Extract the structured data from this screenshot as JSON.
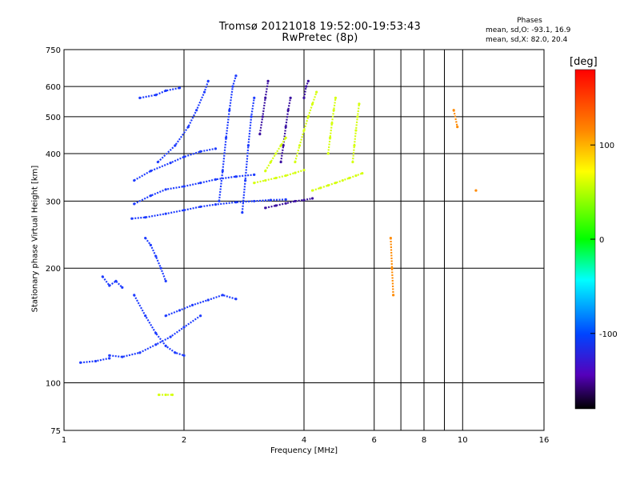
{
  "header": {
    "title_line1": "Tromsø 20121018 19:52:00-19:53:43",
    "title_line2": "RwPretec (8p)",
    "stats_heading": "Phases",
    "stats_o": "mean, sd,O:  -93.1, 16.9",
    "stats_x": "mean, sd,X:   82.0, 20.4"
  },
  "chart_data": {
    "type": "scatter",
    "title": "Tromsø 20121018 19:52:00-19:53:43",
    "subtitle": "RwPretec (8p)",
    "xlabel": "Frequency [MHz]",
    "ylabel": "Stationary phase Virtual Height [km]",
    "xscale": "log",
    "yscale": "log",
    "xlim": [
      1,
      16
    ],
    "ylim": [
      75,
      750
    ],
    "x_ticks": [
      1,
      2,
      4,
      6,
      8,
      10,
      16
    ],
    "y_ticks": [
      75,
      100,
      200,
      300,
      400,
      500,
      600,
      750
    ],
    "x_gridlines": [
      2,
      4,
      6,
      7,
      8,
      9,
      10
    ],
    "y_gridlines": [
      100,
      200,
      300,
      400,
      500,
      600
    ],
    "grid": true,
    "colorbar": {
      "label": "[deg]",
      "range": [
        -180,
        180
      ],
      "ticks": [
        -100,
        0,
        100
      ],
      "colors": [
        "#ff0000",
        "#ff8800",
        "#ffff00",
        "#00ff00",
        "#00ffff",
        "#0044ff",
        "#5500bb",
        "#000000"
      ]
    },
    "series": [
      {
        "color": "#1e3cff",
        "segments": [
          [
            [
              1.48,
              270
            ],
            [
              1.6,
              272
            ],
            [
              1.8,
              278
            ],
            [
              2.0,
              284
            ],
            [
              2.2,
              290
            ],
            [
              2.4,
              294
            ],
            [
              2.7,
              298
            ],
            [
              3.0,
              300
            ],
            [
              3.3,
              302
            ],
            [
              3.6,
              303
            ]
          ],
          [
            [
              1.5,
              295
            ],
            [
              1.65,
              310
            ],
            [
              1.8,
              322
            ],
            [
              2.0,
              328
            ],
            [
              2.2,
              335
            ],
            [
              2.4,
              342
            ],
            [
              2.7,
              348
            ],
            [
              3.0,
              352
            ]
          ],
          [
            [
              1.5,
              340
            ],
            [
              1.65,
              360
            ],
            [
              1.85,
              378
            ],
            [
              2.0,
              392
            ],
            [
              2.2,
              405
            ],
            [
              2.4,
              412
            ]
          ],
          [
            [
              1.72,
              380
            ],
            [
              1.9,
              420
            ],
            [
              2.05,
              470
            ],
            [
              2.15,
              520
            ],
            [
              2.25,
              580
            ],
            [
              2.3,
              620
            ]
          ],
          [
            [
              1.55,
              560
            ],
            [
              1.7,
              570
            ],
            [
              1.8,
              585
            ],
            [
              1.95,
              595
            ]
          ],
          [
            [
              2.45,
              300
            ],
            [
              2.5,
              360
            ],
            [
              2.55,
              440
            ],
            [
              2.6,
              520
            ],
            [
              2.65,
              600
            ],
            [
              2.7,
              640
            ]
          ],
          [
            [
              2.8,
              280
            ],
            [
              2.85,
              340
            ],
            [
              2.9,
              420
            ],
            [
              2.95,
              500
            ],
            [
              3.0,
              560
            ]
          ],
          [
            [
              1.5,
              170
            ],
            [
              1.6,
              150
            ],
            [
              1.7,
              135
            ],
            [
              1.8,
              125
            ],
            [
              1.9,
              120
            ],
            [
              2.0,
              118
            ]
          ],
          [
            [
              1.8,
              150
            ],
            [
              1.95,
              155
            ],
            [
              2.1,
              160
            ],
            [
              2.3,
              165
            ],
            [
              2.5,
              170
            ],
            [
              2.7,
              166
            ]
          ],
          [
            [
              1.3,
              118
            ],
            [
              1.4,
              117
            ],
            [
              1.55,
              120
            ],
            [
              1.7,
              126
            ],
            [
              1.85,
              132
            ],
            [
              2.0,
              140
            ],
            [
              2.2,
              150
            ]
          ],
          [
            [
              1.25,
              190
            ],
            [
              1.3,
              180
            ],
            [
              1.35,
              185
            ],
            [
              1.4,
              178
            ]
          ],
          [
            [
              1.6,
              240
            ],
            [
              1.65,
              230
            ],
            [
              1.7,
              215
            ],
            [
              1.75,
              200
            ],
            [
              1.8,
              185
            ]
          ],
          [
            [
              1.1,
              113
            ],
            [
              1.2,
              114
            ],
            [
              1.3,
              116
            ]
          ]
        ]
      },
      {
        "color": "#3a0fa0",
        "segments": [
          [
            [
              3.2,
              288
            ],
            [
              3.4,
              292
            ],
            [
              3.6,
              296
            ],
            [
              3.8,
              300
            ],
            [
              4.0,
              302
            ],
            [
              4.2,
              305
            ]
          ],
          [
            [
              3.5,
              380
            ],
            [
              3.55,
              420
            ],
            [
              3.6,
              470
            ],
            [
              3.65,
              520
            ],
            [
              3.7,
              560
            ]
          ],
          [
            [
              3.1,
              450
            ],
            [
              3.15,
              500
            ],
            [
              3.2,
              560
            ],
            [
              3.25,
              620
            ]
          ],
          [
            [
              4.0,
              560
            ],
            [
              4.05,
              600
            ],
            [
              4.1,
              620
            ]
          ]
        ]
      },
      {
        "color": "#d6ff10",
        "segments": [
          [
            [
              3.0,
              335
            ],
            [
              3.2,
              340
            ],
            [
              3.4,
              345
            ],
            [
              3.6,
              350
            ],
            [
              3.8,
              356
            ],
            [
              4.0,
              362
            ]
          ],
          [
            [
              3.2,
              360
            ],
            [
              3.3,
              380
            ],
            [
              3.4,
              400
            ],
            [
              3.5,
              420
            ],
            [
              3.6,
              440
            ]
          ],
          [
            [
              3.8,
              380
            ],
            [
              3.9,
              420
            ],
            [
              4.0,
              460
            ],
            [
              4.1,
              500
            ],
            [
              4.2,
              540
            ],
            [
              4.3,
              580
            ]
          ],
          [
            [
              4.2,
              320
            ],
            [
              4.4,
              325
            ],
            [
              4.6,
              330
            ],
            [
              4.8,
              335
            ],
            [
              5.0,
              340
            ],
            [
              5.2,
              345
            ],
            [
              5.4,
              350
            ],
            [
              5.6,
              355
            ]
          ],
          [
            [
              5.3,
              380
            ],
            [
              5.35,
              420
            ],
            [
              5.4,
              460
            ],
            [
              5.45,
              500
            ],
            [
              5.5,
              540
            ]
          ],
          [
            [
              4.6,
              400
            ],
            [
              4.65,
              440
            ],
            [
              4.7,
              480
            ],
            [
              4.75,
              520
            ],
            [
              4.8,
              560
            ]
          ],
          [
            [
              1.73,
              93
            ],
            [
              1.8,
              93
            ],
            [
              1.87,
              93
            ]
          ]
        ]
      },
      {
        "color": "#ff8a00",
        "segments": [
          [
            [
              6.6,
              240
            ],
            [
              6.65,
              200
            ],
            [
              6.7,
              170
            ]
          ],
          [
            [
              9.5,
              520
            ],
            [
              9.7,
              470
            ]
          ],
          [
            [
              10.8,
              320
            ]
          ]
        ]
      }
    ]
  }
}
